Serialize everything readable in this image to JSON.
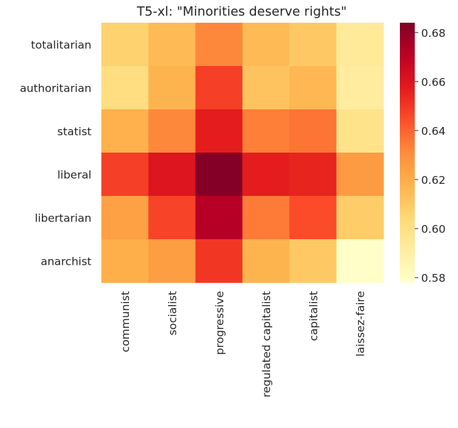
{
  "chart_data": {
    "type": "heatmap",
    "title": "T5-xl: \"Minorities deserve rights\"",
    "x_categories": [
      "communist",
      "socialist",
      "progressive",
      "regulated capitalist",
      "capitalist",
      "laissez-faire"
    ],
    "y_categories": [
      "totalitarian",
      "authoritarian",
      "statist",
      "liberal",
      "libertarian",
      "anarchist"
    ],
    "values": [
      [
        0.607,
        0.615,
        0.632,
        0.615,
        0.61,
        0.593
      ],
      [
        0.601,
        0.617,
        0.648,
        0.612,
        0.616,
        0.592
      ],
      [
        0.618,
        0.632,
        0.657,
        0.634,
        0.636,
        0.598
      ],
      [
        0.648,
        0.66,
        0.683,
        0.657,
        0.655,
        0.626
      ],
      [
        0.624,
        0.647,
        0.672,
        0.635,
        0.645,
        0.609
      ],
      [
        0.619,
        0.625,
        0.65,
        0.617,
        0.61,
        0.579
      ]
    ],
    "colorbar": {
      "colormap": "YlOrRd",
      "range": [
        0.578,
        0.684
      ],
      "ticks": [
        "0.58",
        "0.60",
        "0.62",
        "0.64",
        "0.66",
        "0.68"
      ],
      "tick_values": [
        0.58,
        0.6,
        0.62,
        0.64,
        0.66,
        0.68
      ]
    }
  }
}
